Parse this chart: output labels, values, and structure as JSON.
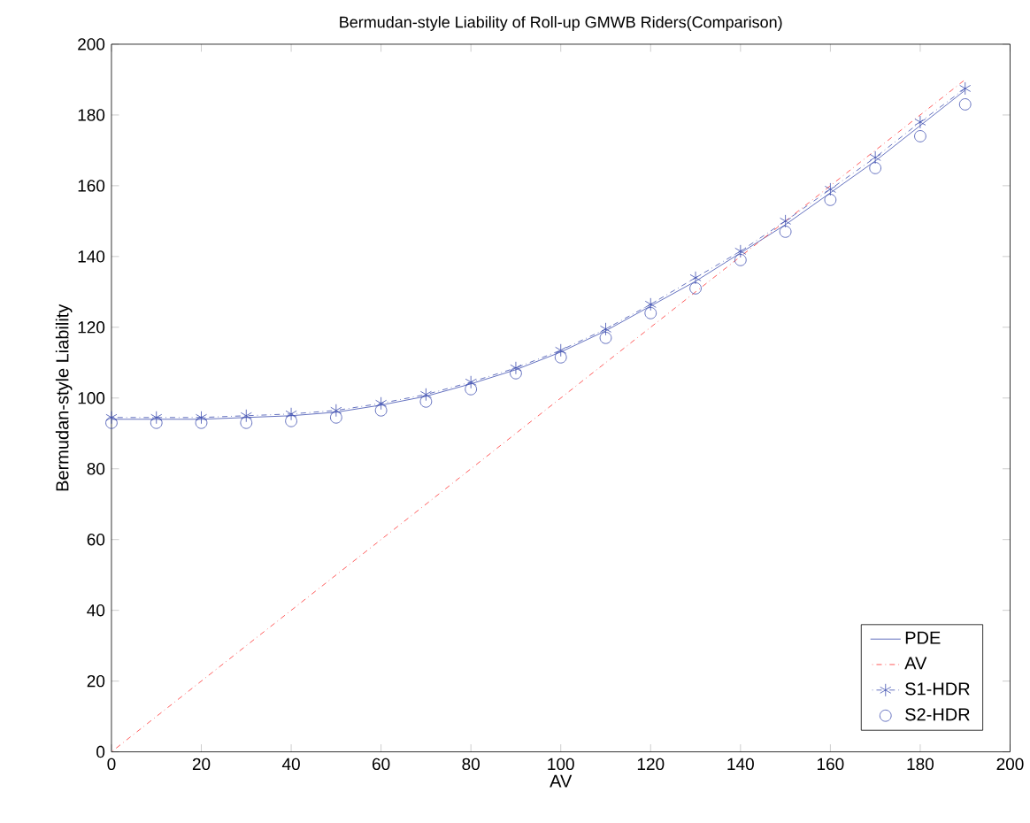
{
  "chart_data": {
    "type": "line",
    "title": "Bermudan-style Liability of Roll-up GMWB Riders(Comparison)",
    "xlabel": "AV",
    "ylabel": "Bermudan-style Liability",
    "xlim": [
      0,
      200
    ],
    "ylim": [
      0,
      200
    ],
    "xticks": [
      0,
      20,
      40,
      60,
      80,
      100,
      120,
      140,
      160,
      180,
      200
    ],
    "yticks": [
      0,
      20,
      40,
      60,
      80,
      100,
      120,
      140,
      160,
      180,
      200
    ],
    "x": [
      0,
      10,
      20,
      30,
      40,
      50,
      60,
      70,
      80,
      90,
      100,
      110,
      120,
      130,
      140,
      150,
      160,
      170,
      180,
      190
    ],
    "legend": "bottom right",
    "grid": false,
    "series": [
      {
        "name": "PDE",
        "color": "#3f4fb0",
        "line_style": "solid",
        "marker": "none",
        "values": [
          94,
          94,
          94,
          94.5,
          95,
          96,
          98,
          100.5,
          104,
          108,
          113,
          119,
          126,
          133,
          141,
          149,
          158,
          167,
          177,
          187
        ]
      },
      {
        "name": "AV",
        "color": "#ff3333",
        "line_style": "dashdot",
        "marker": "none",
        "x": [
          0,
          190
        ],
        "values": [
          0,
          190
        ]
      },
      {
        "name": "S1-HDR",
        "color": "#3f4fb0",
        "line_style": "dashdot",
        "marker": "cross",
        "values": [
          94.5,
          94.5,
          94.5,
          95,
          95.5,
          96.5,
          98.5,
          101,
          104.5,
          108.5,
          113.5,
          119.5,
          126.5,
          134,
          141.5,
          150,
          159,
          168,
          178,
          187.5
        ]
      },
      {
        "name": "S2-HDR",
        "type": "scatter",
        "color": "#3f4fb0",
        "line_style": "none",
        "marker": "circle",
        "values": [
          93,
          93,
          93,
          93,
          93.5,
          94.5,
          96.5,
          99,
          102.5,
          107,
          111.5,
          117,
          124,
          131,
          139,
          147,
          156,
          165,
          174,
          183
        ]
      }
    ]
  }
}
